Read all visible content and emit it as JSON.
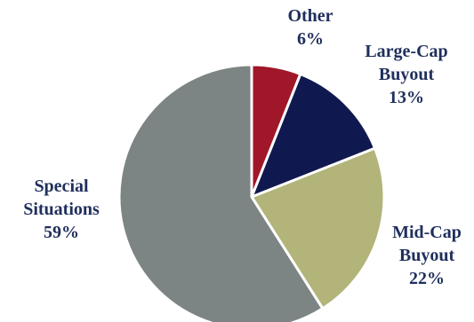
{
  "chart_data": {
    "type": "pie",
    "slices": [
      {
        "label_lines": [
          "Other"
        ],
        "value": 6,
        "value_text": "6%",
        "color": "#a0172a"
      },
      {
        "label_lines": [
          "Large-Cap",
          "Buyout"
        ],
        "value": 13,
        "value_text": "13%",
        "color": "#10194f"
      },
      {
        "label_lines": [
          "Mid-Cap",
          "Buyout"
        ],
        "value": 22,
        "value_text": "22%",
        "color": "#b2b47a"
      },
      {
        "label_lines": [
          "Special",
          "Situations"
        ],
        "value": 59,
        "value_text": "59%",
        "color": "#7d8584"
      }
    ],
    "start": "12 o'clock",
    "direction": "clockwise",
    "legend": "none",
    "label_color": "#1f2f5c",
    "border_color": "#ffffff"
  }
}
